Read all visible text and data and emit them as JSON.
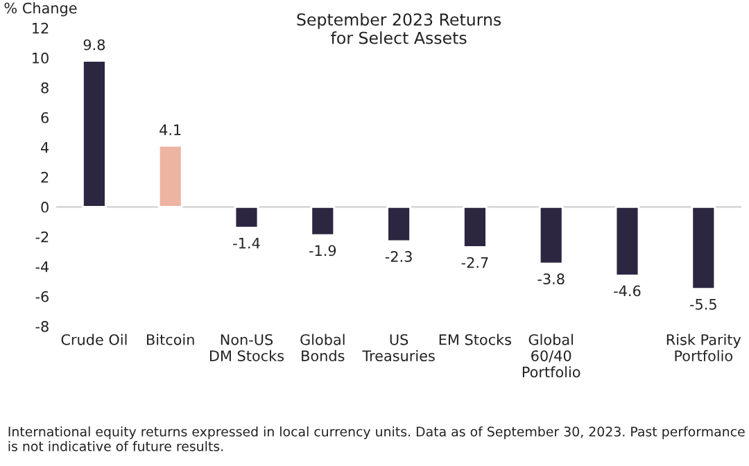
{
  "chart_data": {
    "type": "bar",
    "title": "September 2023 Returns\nfor Select Assets",
    "ylabel": "% Change",
    "categories": [
      "Crude Oil",
      "Bitcoin",
      "Non-US\nDM Stocks",
      "Global\nBonds",
      "US\nTreasuries",
      "EM Stocks",
      "Global\n60/40\nPortfolio",
      null,
      "Risk Parity\nPortfolio"
    ],
    "values": [
      9.8,
      4.1,
      -1.4,
      -1.9,
      -2.3,
      -2.7,
      -3.8,
      -4.6,
      -5.5
    ],
    "colors": [
      "#2b2245",
      "#f9ae96",
      "#2b2245",
      "#2b2245",
      "#2b2245",
      "#2b2245",
      "#2b2245",
      "#2b2245",
      "#2b2245"
    ],
    "ylim": [
      -8,
      12
    ],
    "yticks": [
      -8,
      -6,
      -4,
      -2,
      0,
      2,
      4,
      6,
      8,
      10,
      12
    ],
    "ref_lines": [
      {
        "axis": "y",
        "value": 0,
        "color": "#d9d9d9"
      }
    ],
    "data_labels": true,
    "grid": false,
    "annotations": [
      "International equity returns expressed in local currency units. Data as of September 30, 2023. Past performance is not indicative of future results."
    ]
  }
}
